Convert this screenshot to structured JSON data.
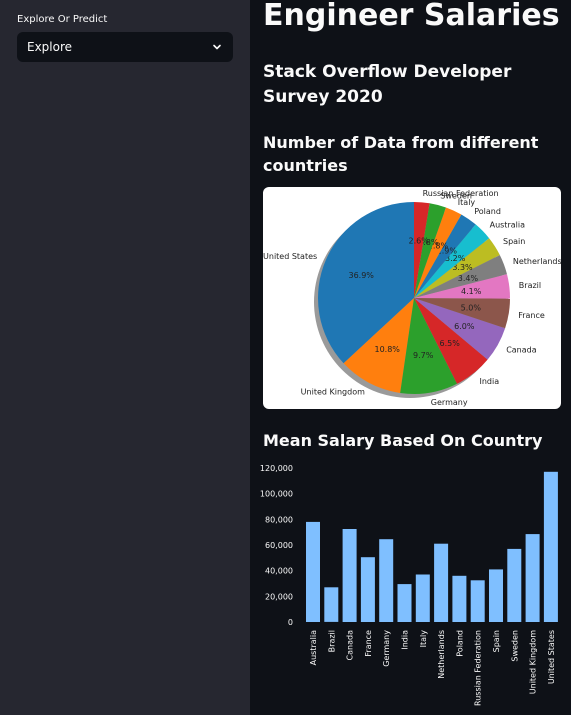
{
  "sidebar": {
    "label": "Explore Or Predict",
    "select": {
      "value": "Explore"
    }
  },
  "main": {
    "title": "Engineer Salaries",
    "subtitle": "Stack Overflow Developer Survey 2020",
    "pie_heading": "Number of Data from different countries",
    "bar_heading": "Mean Salary Based On Country"
  },
  "colors": {
    "sidebar_bg": "#262730",
    "main_bg": "#0e1117",
    "bar": "#7fbfff"
  },
  "chart_data": [
    {
      "type": "pie",
      "title": "",
      "labels": [
        "United States",
        "United Kingdom",
        "Germany",
        "India",
        "Canada",
        "France",
        "Brazil",
        "Netherlands",
        "Spain",
        "Australia",
        "Poland",
        "Italy",
        "Sweden",
        "Russian Federation"
      ],
      "values": [
        36.9,
        10.8,
        9.7,
        6.5,
        6.0,
        5.0,
        4.1,
        3.4,
        3.3,
        3.2,
        2.9,
        2.8,
        2.8,
        2.6
      ],
      "value_labels": [
        "36.9%",
        "10.8%",
        "9.7%",
        "6.5%",
        "6.0%",
        "5.0%",
        "4.1%",
        "3.4%",
        "3.3%",
        "3.2%",
        "2.9%",
        "2.8%",
        "2.8%",
        "2.6%"
      ],
      "colors": [
        "#1f77b4",
        "#ff7f0e",
        "#2ca02c",
        "#d62728",
        "#9467bd",
        "#8c564b",
        "#e377c2",
        "#7f7f7f",
        "#bcbd22",
        "#17becf",
        "#1f77b4",
        "#ff7f0e",
        "#2ca02c",
        "#d62728"
      ],
      "start_angle_deg": 90,
      "shadow": true
    },
    {
      "type": "bar",
      "title": "",
      "categories": [
        "Australia",
        "Brazil",
        "Canada",
        "France",
        "Germany",
        "India",
        "Italy",
        "Netherlands",
        "Poland",
        "Russian Federation",
        "Spain",
        "Sweden",
        "United Kingdom",
        "United States"
      ],
      "values": [
        78000,
        27000,
        72500,
        50500,
        64500,
        29500,
        37000,
        61000,
        36000,
        32500,
        41000,
        57000,
        68500,
        117000
      ],
      "yticks": [
        "0",
        "20,000",
        "40,000",
        "60,000",
        "80,000",
        "100,000",
        "120,000"
      ],
      "ylim": [
        0,
        120000
      ],
      "xlabel": "",
      "ylabel": "",
      "grid": false,
      "color": "#7fbfff"
    }
  ]
}
